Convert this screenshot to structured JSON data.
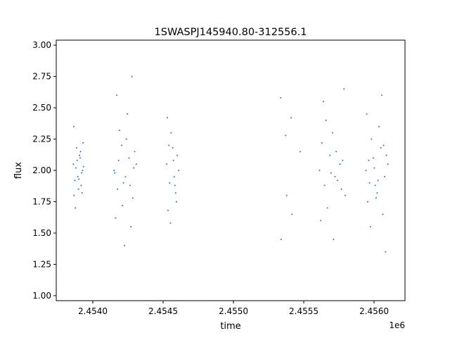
{
  "chart_data": {
    "type": "scatter",
    "title": "1SWASPJ145940.80-312556.1",
    "xlabel": "time",
    "ylabel": "flux",
    "x_offset_label": "1e6",
    "xlim": [
      2453740,
      2456220
    ],
    "ylim": [
      0.96,
      3.04
    ],
    "x_ticks": [
      {
        "value": 2454000,
        "label": "2.4540"
      },
      {
        "value": 2454500,
        "label": "2.4545"
      },
      {
        "value": 2455000,
        "label": "2.4550"
      },
      {
        "value": 2455500,
        "label": "2.4555"
      },
      {
        "value": 2456000,
        "label": "2.4560"
      }
    ],
    "y_ticks": [
      {
        "value": 1.0,
        "label": "1.00"
      },
      {
        "value": 1.25,
        "label": "1.25"
      },
      {
        "value": 1.5,
        "label": "1.50"
      },
      {
        "value": 1.75,
        "label": "1.75"
      },
      {
        "value": 2.0,
        "label": "2.00"
      },
      {
        "value": 2.25,
        "label": "2.25"
      },
      {
        "value": 2.5,
        "label": "2.50"
      },
      {
        "value": 2.75,
        "label": "2.75"
      },
      {
        "value": 3.0,
        "label": "3.00"
      }
    ],
    "grid": false,
    "point_color": "#1f77b4",
    "series": [
      {
        "x": [
          2453862,
          2453872,
          2453885,
          2453898,
          2453910,
          2453921,
          2453931,
          2453866,
          2453879,
          2453893,
          2453905,
          2453917,
          2453927,
          2453864,
          2453876,
          2453889,
          2453901,
          2453913,
          2453924,
          2453934,
          2454151,
          2454176,
          2454205,
          2454232,
          2454258,
          2454284,
          2454309,
          2454162,
          2454190,
          2454218,
          2454246,
          2454271,
          2454298,
          2454156,
          2454183,
          2454211,
          2454239,
          2454265,
          2454291,
          2454170,
          2454225,
          2454278,
          2454525,
          2454546,
          2454568,
          2454589,
          2454611,
          2454535,
          2454557,
          2454579,
          2454600,
          2454530,
          2454552,
          2454573,
          2454595,
          2454541,
          2454584,
          2455336,
          2455339,
          2455372,
          2455378,
          2455410,
          2455415,
          2455475,
          2455612,
          2455648,
          2455685,
          2455722,
          2455758,
          2455795,
          2455630,
          2455668,
          2455704,
          2455740,
          2455777,
          2455621,
          2455658,
          2455694,
          2455731,
          2455768,
          2455640,
          2455712,
          2455786,
          2455942,
          2455968,
          2455995,
          2456022,
          2456048,
          2456075,
          2456098,
          2455955,
          2455982,
          2456008,
          2456035,
          2456062,
          2456088,
          2455948,
          2455975,
          2456002,
          2456028,
          2456055,
          2456082,
          2455962,
          2456015,
          2456068
        ],
        "y": [
          2.05,
          1.92,
          2.18,
          1.85,
          2.1,
          1.98,
          2.22,
          1.8,
          2.02,
          1.95,
          2.12,
          1.88,
          2.0,
          2.35,
          1.7,
          2.08,
          1.93,
          2.15,
          1.82,
          2.03,
          2.0,
          1.85,
          2.2,
          1.95,
          2.1,
          1.78,
          2.05,
          1.62,
          2.32,
          1.9,
          2.45,
          1.55,
          2.15,
          1.98,
          2.08,
          1.72,
          2.25,
          1.88,
          2.02,
          2.6,
          1.4,
          2.75,
          2.05,
          1.9,
          2.18,
          1.82,
          2.0,
          1.68,
          2.3,
          1.95,
          2.12,
          2.42,
          1.58,
          2.08,
          1.75,
          2.2,
          1.88,
          2.58,
          1.45,
          2.28,
          1.8,
          2.42,
          1.65,
          2.15,
          2.0,
          1.88,
          2.12,
          1.95,
          2.05,
          1.8,
          2.22,
          1.7,
          2.3,
          1.92,
          2.08,
          1.6,
          2.4,
          1.98,
          2.15,
          1.85,
          2.55,
          1.45,
          2.65,
          2.0,
          1.9,
          2.1,
          1.82,
          2.18,
          1.95,
          2.05,
          1.75,
          2.25,
          1.88,
          2.35,
          1.65,
          2.12,
          2.45,
          1.55,
          2.02,
          1.92,
          2.6,
          1.35,
          2.08,
          1.78,
          2.2
        ]
      }
    ]
  }
}
